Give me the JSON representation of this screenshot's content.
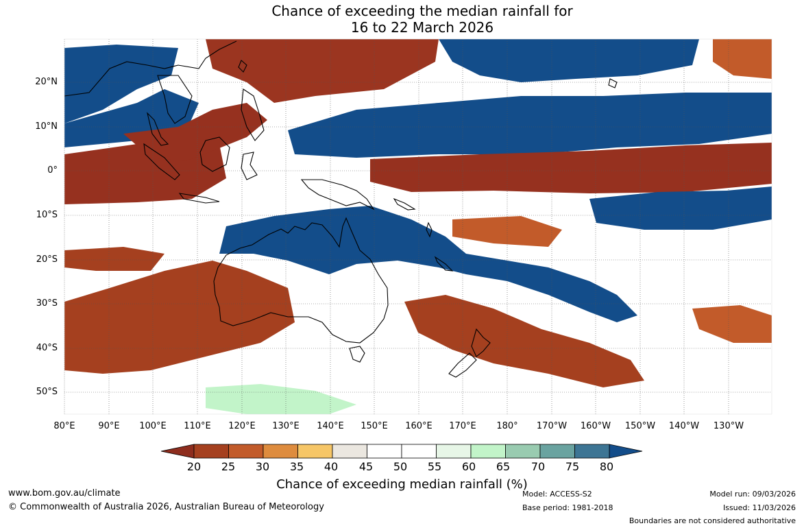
{
  "title": {
    "line1": "Chance of exceeding the median rainfall for",
    "line2": "16 to 22 March 2026"
  },
  "axes": {
    "lat_labels": [
      "20°N",
      "10°N",
      "0°",
      "10°S",
      "20°S",
      "30°S",
      "40°S",
      "50°S"
    ],
    "lon_labels": [
      "80°E",
      "90°E",
      "100°E",
      "110°E",
      "120°E",
      "130°E",
      "140°E",
      "150°E",
      "160°E",
      "170°E",
      "180°",
      "170°W",
      "160°W",
      "150°W",
      "140°W",
      "130°W"
    ]
  },
  "colorbar": {
    "title": "Chance of exceeding median rainfall (%)",
    "ticks": [
      "20",
      "25",
      "30",
      "35",
      "40",
      "45",
      "50",
      "55",
      "60",
      "65",
      "70",
      "75",
      "80"
    ],
    "colors": [
      "#8e2d1e",
      "#a5401f",
      "#c25b2a",
      "#de8c3e",
      "#f6c667",
      "#ebe7e0",
      "#ffffff",
      "#ffffff",
      "#e7f6e7",
      "#c2f4c9",
      "#99cbb0",
      "#6aa3a0",
      "#3d7594",
      "#134d8a"
    ]
  },
  "footer": {
    "website": "www.bom.gov.au/climate",
    "copyright": "© Commonwealth of Australia 2026, Australian Bureau of Meteorology",
    "model": "Model: ACCESS-S2",
    "base_period": "Base period: 1981-2018",
    "model_run": "Model run: 09/03/2026",
    "issued": "Issued: 11/03/2026",
    "disclaimer": "Boundaries are not considered authoritative"
  }
}
